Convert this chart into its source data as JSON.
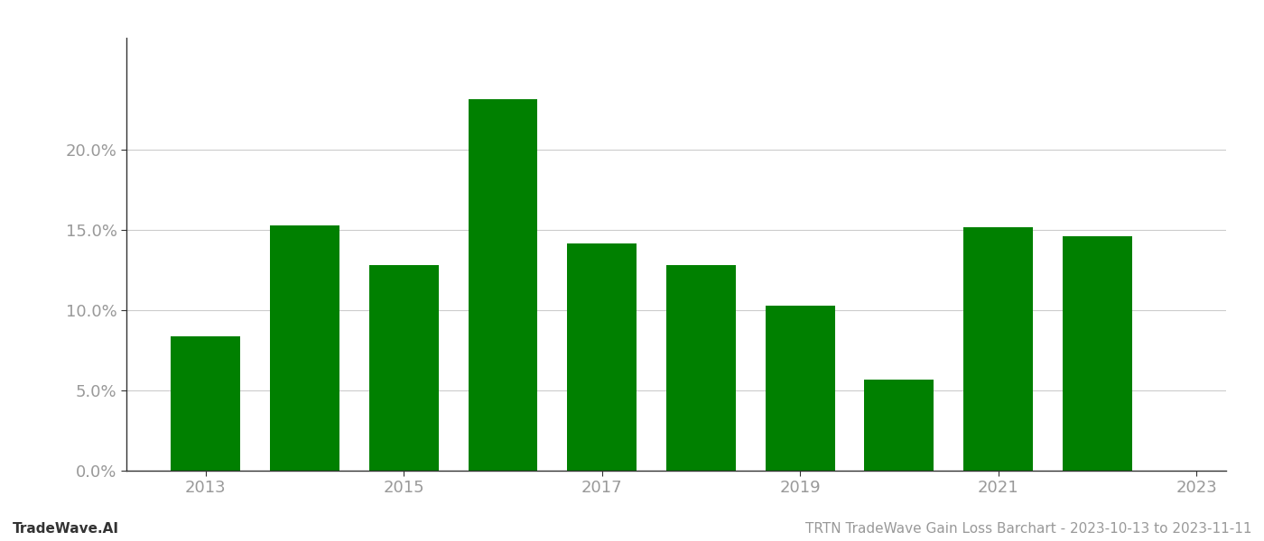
{
  "years": [
    2013,
    2014,
    2015,
    2016,
    2017,
    2018,
    2019,
    2020,
    2021,
    2022
  ],
  "values": [
    0.084,
    0.153,
    0.128,
    0.232,
    0.142,
    0.128,
    0.103,
    0.057,
    0.152,
    0.146
  ],
  "bar_color": "#008000",
  "background_color": "#ffffff",
  "ylim": [
    0,
    0.27
  ],
  "yticks": [
    0.0,
    0.05,
    0.1,
    0.15,
    0.2
  ],
  "footer_left": "TradeWave.AI",
  "footer_right": "TRTN TradeWave Gain Loss Barchart - 2023-10-13 to 2023-11-11",
  "grid_color": "#cccccc",
  "axis_label_color": "#999999",
  "spine_color": "#333333",
  "footer_fontsize": 11,
  "tick_fontsize": 13,
  "bar_width": 0.7
}
